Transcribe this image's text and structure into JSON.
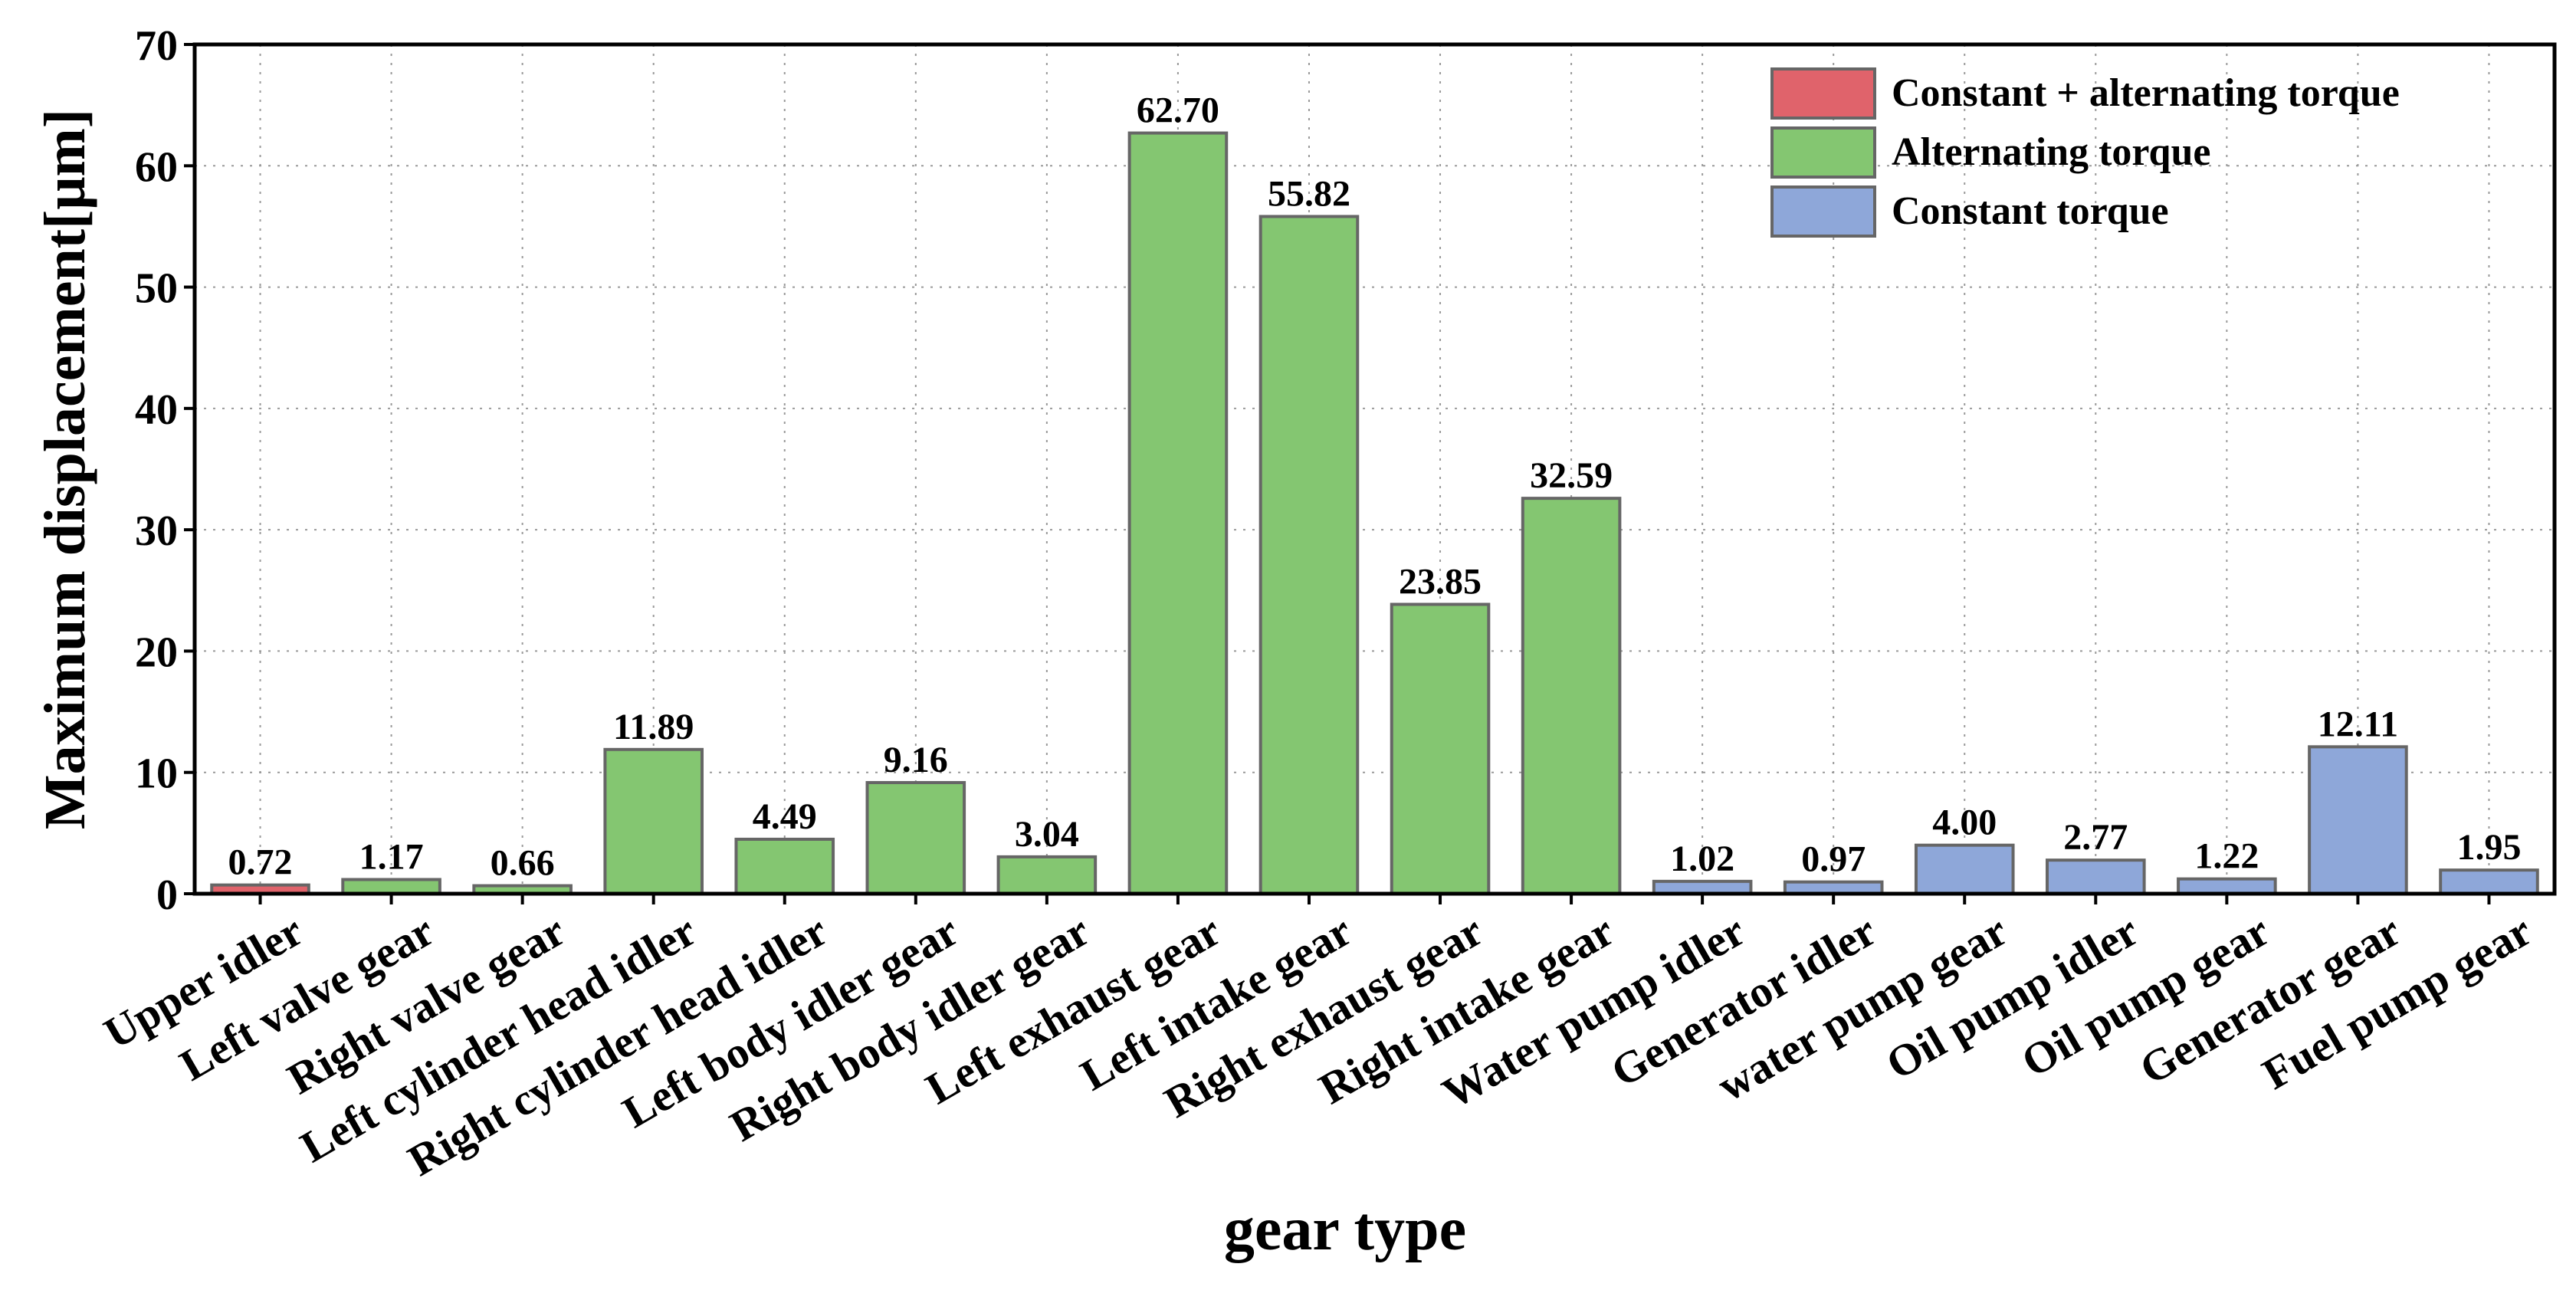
{
  "chart_data": {
    "type": "bar",
    "x_label": "gear type",
    "y_label": "Maximum displacement[μm]",
    "categories": [
      "Upper idler",
      "Left valve gear",
      "Right valve gear",
      "Left cylinder head idler",
      "Right cylinder head idler",
      "Left body idler gear",
      "Right body idler gear",
      "Left exhaust gear",
      "Left intake gear",
      "Right exhaust gear",
      "Right intake gear",
      "Water pump idler",
      "Generator idler",
      "water pump gear",
      "Oil pump idler",
      "Oil pump gear",
      "Generator gear",
      "Fuel pump gear"
    ],
    "series": [
      {
        "name": "Constant + alternating torque",
        "color": "#e0636b",
        "values": [
          0.72,
          null,
          null,
          null,
          null,
          null,
          null,
          null,
          null,
          null,
          null,
          null,
          null,
          null,
          null,
          null,
          null,
          null
        ],
        "value_labels": [
          "0.72",
          null,
          null,
          null,
          null,
          null,
          null,
          null,
          null,
          null,
          null,
          null,
          null,
          null,
          null,
          null,
          null,
          null
        ]
      },
      {
        "name": "Alternating torque",
        "color": "#84c671",
        "values": [
          null,
          1.17,
          0.66,
          11.89,
          4.49,
          9.16,
          3.04,
          62.7,
          55.82,
          23.85,
          32.59,
          null,
          null,
          null,
          null,
          null,
          null,
          null
        ],
        "value_labels": [
          null,
          "1.17",
          "0.66",
          "11.89",
          "4.49",
          "9.16",
          "3.04",
          "62.70",
          "55.82",
          "23.85",
          "32.59",
          null,
          null,
          null,
          null,
          null,
          null,
          null
        ]
      },
      {
        "name": "Constant torque",
        "color": "#8ea7d9",
        "values": [
          null,
          null,
          null,
          null,
          null,
          null,
          null,
          null,
          null,
          null,
          null,
          1.02,
          0.97,
          4.0,
          2.77,
          1.22,
          12.11,
          1.95
        ],
        "value_labels": [
          null,
          null,
          null,
          null,
          null,
          null,
          null,
          null,
          null,
          null,
          null,
          "1.02",
          "0.97",
          "4.00",
          "2.77",
          "1.22",
          "12.11",
          "1.95"
        ]
      }
    ],
    "ylim": [
      0,
      70
    ],
    "yticks": [
      0,
      10,
      20,
      30,
      40,
      50,
      60,
      70
    ],
    "grid": true,
    "legend": "upper right"
  }
}
